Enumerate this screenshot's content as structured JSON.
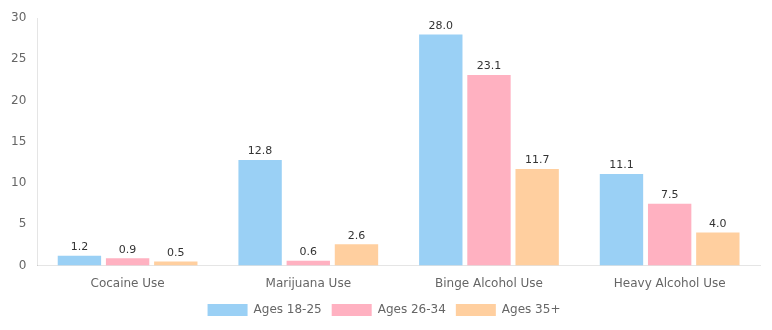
{
  "chart_data": {
    "type": "bar",
    "categories": [
      "Cocaine Use",
      "Marijuana Use",
      "Binge Alcohol Use",
      "Heavy Alcohol Use"
    ],
    "series": [
      {
        "name": "Ages 18-25",
        "values": [
          1.2,
          12.8,
          28.0,
          11.1
        ],
        "value_labels": [
          "1.2",
          "12.8",
          "28.0",
          "11.1"
        ]
      },
      {
        "name": "Ages 26-34",
        "values": [
          0.9,
          0.6,
          23.1,
          7.5
        ],
        "value_labels": [
          "0.9",
          "0.6",
          "23.1",
          "7.5"
        ]
      },
      {
        "name": "Ages 35+",
        "values": [
          0.5,
          2.6,
          11.7,
          4.0
        ],
        "value_labels": [
          "0.5",
          "2.6",
          "11.7",
          "4.0"
        ]
      }
    ],
    "ylim": [
      0,
      30
    ],
    "yticks": [
      0,
      5,
      10,
      15,
      20,
      25,
      30
    ],
    "grid": false,
    "legend": "bottom",
    "data_labels": true
  }
}
